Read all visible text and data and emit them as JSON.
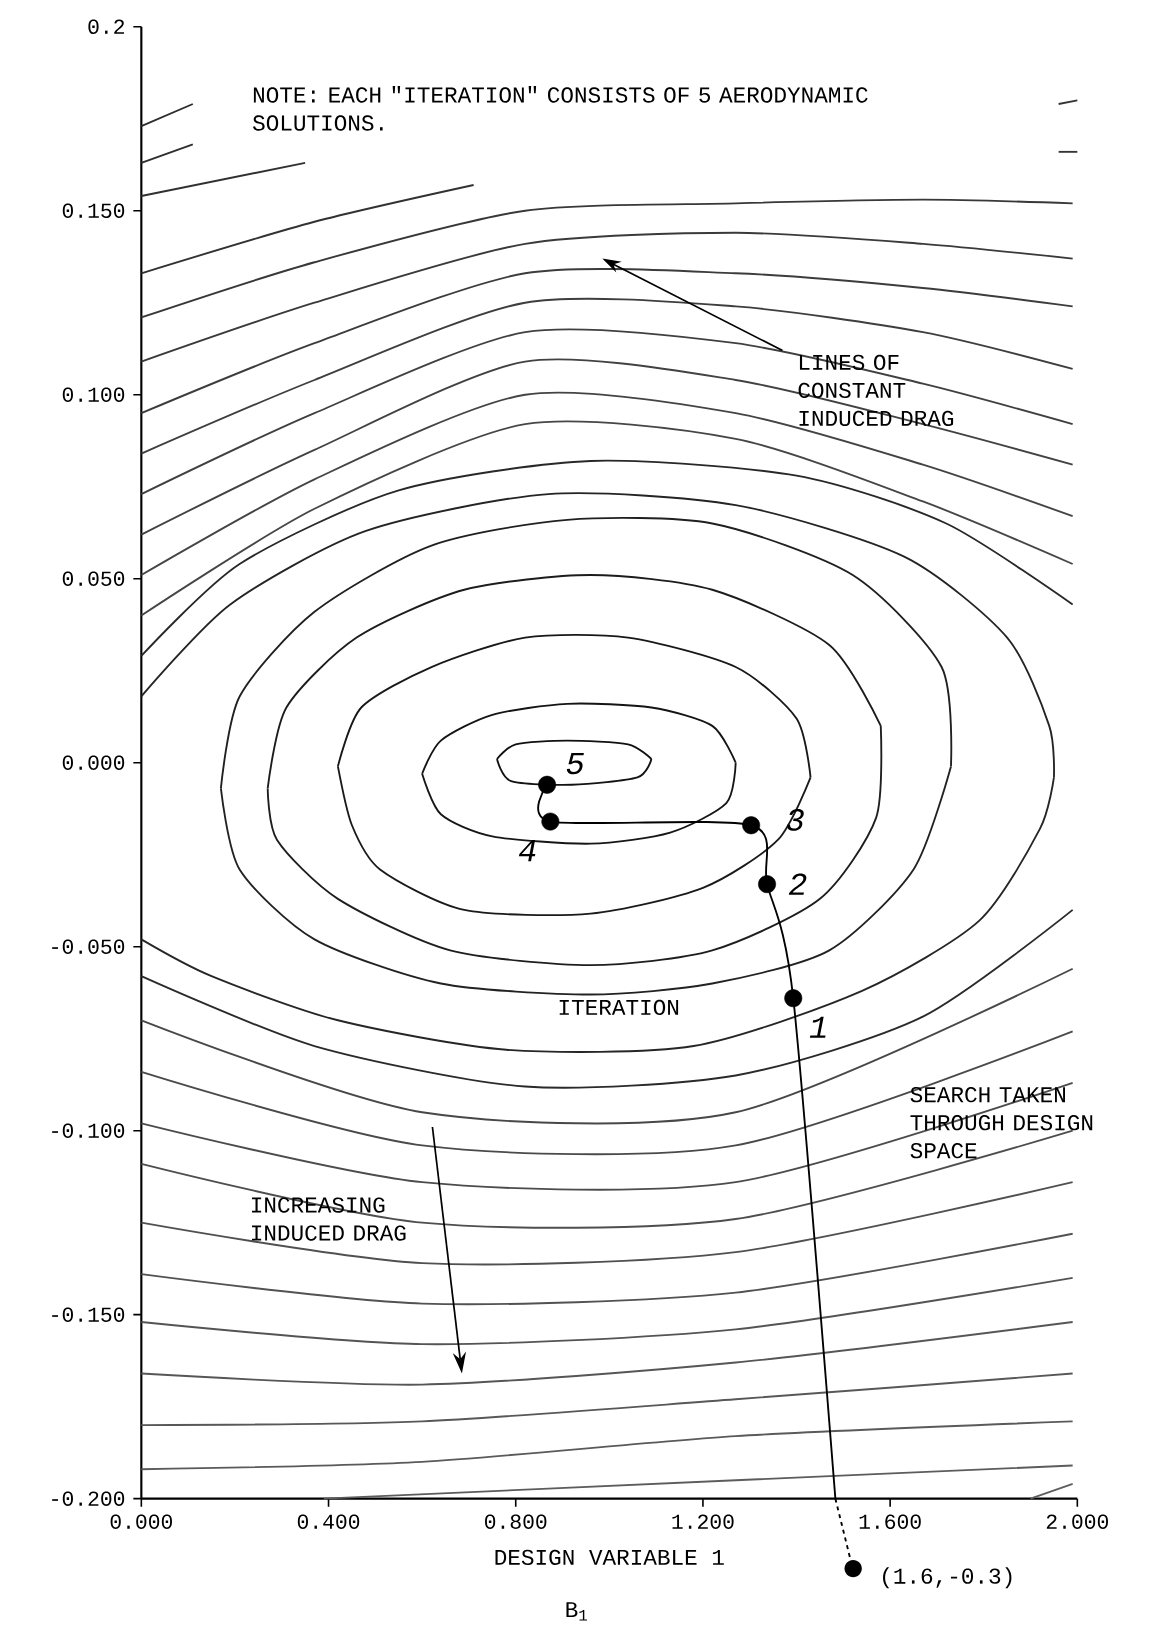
{
  "chart_data": {
    "type": "line",
    "xlabel": "DESIGN VARIABLE 1",
    "xlim": [
      0,
      2
    ],
    "ylim": [
      -0.2,
      0.2
    ],
    "xticks": [
      {
        "value": 0,
        "label": "0.000"
      },
      {
        "value": 0.4,
        "label": "0.400"
      },
      {
        "value": 0.8,
        "label": "0.800"
      },
      {
        "value": 1.2,
        "label": "1.200"
      },
      {
        "value": 1.6,
        "label": "1.600"
      },
      {
        "value": 2,
        "label": "2.000"
      }
    ],
    "yticks": [
      {
        "value": -0.2,
        "label": "-0.200"
      },
      {
        "value": -0.15,
        "label": "-0.150"
      },
      {
        "value": -0.1,
        "label": "-0.100"
      },
      {
        "value": -0.05,
        "label": "-0.050"
      },
      {
        "value": 0,
        "label": "0.000"
      },
      {
        "value": 0.05,
        "label": "0.050"
      },
      {
        "value": 0.1,
        "label": "0.100"
      },
      {
        "value": 0.15,
        "label": "0.150"
      },
      {
        "value": 0.2,
        "label": "0.2"
      }
    ],
    "series": [
      {
        "color": "#101010",
        "x": [
          0.76,
          0.8,
          0.91,
          1.04,
          1.09
        ],
        "values": [
          0.001,
          0.005,
          0.006,
          0.005,
          0.001
        ]
      },
      {
        "color": "#121212",
        "x": [
          0.76,
          0.79,
          0.92,
          1.06,
          1.09
        ],
        "values": [
          0.001,
          -0.005,
          -0.006,
          -0.004,
          0.001
        ]
      },
      {
        "color": "#141414",
        "x": [
          0.6,
          0.64,
          0.75,
          0.91,
          1.09,
          1.22,
          1.27
        ],
        "values": [
          -0.003,
          0.006,
          0.013,
          0.016,
          0.015,
          0.01,
          0.0
        ]
      },
      {
        "color": "#161616",
        "x": [
          0.6,
          0.64,
          0.75,
          0.96,
          1.13,
          1.25,
          1.27
        ],
        "values": [
          -0.003,
          -0.014,
          -0.02,
          -0.022,
          -0.019,
          -0.011,
          0.0
        ]
      },
      {
        "color": "#181818",
        "x": [
          0.42,
          0.47,
          0.62,
          0.82,
          1.04,
          1.27,
          1.4,
          1.43
        ],
        "values": [
          -0.001,
          0.015,
          0.026,
          0.034,
          0.034,
          0.026,
          0.012,
          -0.004
        ]
      },
      {
        "color": "#1a1a1a",
        "x": [
          0.42,
          0.45,
          0.51,
          0.69,
          0.96,
          1.2,
          1.36,
          1.43
        ],
        "values": [
          -0.001,
          -0.017,
          -0.029,
          -0.04,
          -0.041,
          -0.034,
          -0.021,
          -0.004
        ]
      },
      {
        "color": "#1c1c1c",
        "x": [
          0.27,
          0.31,
          0.46,
          0.69,
          0.96,
          1.22,
          1.47,
          1.58
        ],
        "values": [
          -0.007,
          0.015,
          0.034,
          0.047,
          0.051,
          0.047,
          0.032,
          0.01
        ]
      },
      {
        "color": "#1e1e1e",
        "x": [
          0.27,
          0.29,
          0.42,
          0.66,
          0.96,
          1.22,
          1.45,
          1.57,
          1.58
        ],
        "values": [
          -0.007,
          -0.021,
          -0.037,
          -0.051,
          -0.055,
          -0.051,
          -0.037,
          -0.015,
          0.01
        ]
      },
      {
        "color": "#202020",
        "x": [
          0.17,
          0.21,
          0.37,
          0.62,
          0.91,
          1.22,
          1.52,
          1.71,
          1.73
        ],
        "values": [
          -0.007,
          0.018,
          0.041,
          0.059,
          0.066,
          0.065,
          0.051,
          0.026,
          -0.001
        ]
      },
      {
        "color": "#222222",
        "x": [
          0.17,
          0.21,
          0.37,
          0.64,
          0.96,
          1.22,
          1.47,
          1.65,
          1.73
        ],
        "values": [
          -0.007,
          -0.029,
          -0.048,
          -0.06,
          -0.063,
          -0.06,
          -0.051,
          -0.029,
          -0.001
        ]
      },
      {
        "color": "#242424",
        "x": [
          0,
          0.19,
          0.48,
          0.87,
          1.27,
          1.63,
          1.85,
          1.94,
          1.95
        ],
        "values": [
          0.018,
          0.043,
          0.063,
          0.073,
          0.07,
          0.056,
          0.034,
          0.01,
          -0.004
        ]
      },
      {
        "color": "#262626",
        "x": [
          0,
          0.15,
          0.42,
          0.78,
          1.18,
          1.54,
          1.79,
          1.92,
          1.95
        ],
        "values": [
          -0.048,
          -0.058,
          -0.07,
          -0.078,
          -0.077,
          -0.062,
          -0.043,
          -0.018,
          -0.004
        ]
      },
      {
        "color": "#282828",
        "x": [
          0,
          0.21,
          0.55,
          0.96,
          1.4,
          1.72,
          1.99
        ],
        "values": [
          0.029,
          0.054,
          0.074,
          0.082,
          0.078,
          0.065,
          0.043
        ]
      },
      {
        "color": "#2a2a2a",
        "x": [
          0,
          0.37,
          0.82,
          1.27,
          1.67,
          1.99
        ],
        "values": [
          -0.058,
          -0.077,
          -0.088,
          -0.085,
          -0.069,
          -0.04
        ]
      },
      {
        "color": "#2c2c2c",
        "x": [
          0,
          0.11
        ],
        "values": [
          0.173,
          0.179
        ]
      },
      {
        "color": "#2e2e2e",
        "x": [
          0,
          0.11
        ],
        "values": [
          0.163,
          0.168
        ]
      },
      {
        "color": "#303030",
        "x": [
          0,
          0.35
        ],
        "values": [
          0.154,
          0.163
        ]
      },
      {
        "color": "#323232",
        "x": [
          0,
          0.37,
          0.71
        ],
        "values": [
          0.133,
          0.147,
          0.157
        ]
      },
      {
        "color": "#343434",
        "x": [
          1.96,
          2.0
        ],
        "values": [
          0.179,
          0.18
        ]
      },
      {
        "color": "#363636",
        "x": [
          1.96,
          2.0
        ],
        "values": [
          0.166,
          0.166
        ]
      },
      {
        "color": "#383838",
        "x": [
          0,
          0.37,
          0.82,
          1.27,
          1.67,
          1.99
        ],
        "values": [
          0.121,
          0.136,
          0.15,
          0.152,
          0.153,
          0.152
        ]
      },
      {
        "color": "#3a3a3a",
        "x": [
          0,
          0.37,
          0.82,
          1.27,
          1.67,
          1.99
        ],
        "values": [
          0.109,
          0.125,
          0.141,
          0.144,
          0.141,
          0.137
        ]
      },
      {
        "color": "#3c3c3c",
        "x": [
          0,
          0.37,
          0.82,
          1.27,
          1.67,
          1.99
        ],
        "values": [
          0.095,
          0.114,
          0.133,
          0.133,
          0.129,
          0.124
        ]
      },
      {
        "color": "#3e3e3e",
        "x": [
          0,
          0.37,
          0.82,
          1.27,
          1.67,
          1.99
        ],
        "values": [
          0.084,
          0.104,
          0.125,
          0.124,
          0.117,
          0.107
        ]
      },
      {
        "color": "#404040",
        "x": [
          0,
          0.37,
          0.82,
          1.27,
          1.67,
          1.99
        ],
        "values": [
          0.073,
          0.095,
          0.117,
          0.114,
          0.103,
          0.092
        ]
      },
      {
        "color": "#424242",
        "x": [
          0,
          0.37,
          0.82,
          1.27,
          1.67,
          1.99
        ],
        "values": [
          0.062,
          0.085,
          0.109,
          0.104,
          0.092,
          0.081
        ]
      },
      {
        "color": "#444444",
        "x": [
          0,
          0.37,
          0.82,
          1.27,
          1.67,
          1.99
        ],
        "values": [
          0.051,
          0.077,
          0.1,
          0.095,
          0.081,
          0.067
        ]
      },
      {
        "color": "#464646",
        "x": [
          0,
          0.37,
          0.82,
          1.27,
          1.67,
          1.99
        ],
        "values": [
          0.04,
          0.069,
          0.092,
          0.088,
          0.071,
          0.054
        ]
      },
      {
        "color": "#484848",
        "x": [
          0,
          0.6,
          1.27,
          1.99
        ],
        "values": [
          -0.07,
          -0.095,
          -0.095,
          -0.056
        ]
      },
      {
        "color": "#4a4a4a",
        "x": [
          0,
          0.6,
          1.27,
          1.99
        ],
        "values": [
          -0.084,
          -0.104,
          -0.104,
          -0.073
        ]
      },
      {
        "color": "#4c4c4c",
        "x": [
          0,
          0.6,
          1.27,
          1.99
        ],
        "values": [
          -0.098,
          -0.114,
          -0.114,
          -0.087
        ]
      },
      {
        "color": "#4e4e4e",
        "x": [
          0,
          0.6,
          1.27,
          1.99
        ],
        "values": [
          -0.109,
          -0.125,
          -0.124,
          -0.1
        ]
      },
      {
        "color": "#505050",
        "x": [
          0,
          0.6,
          1.27,
          1.99
        ],
        "values": [
          -0.125,
          -0.136,
          -0.133,
          -0.114
        ]
      },
      {
        "color": "#525252",
        "x": [
          0,
          0.6,
          1.27,
          1.99
        ],
        "values": [
          -0.139,
          -0.147,
          -0.144,
          -0.128
        ]
      },
      {
        "color": "#545454",
        "x": [
          0,
          0.6,
          1.27,
          1.99
        ],
        "values": [
          -0.152,
          -0.158,
          -0.154,
          -0.14
        ]
      },
      {
        "color": "#565656",
        "x": [
          0,
          0.6,
          1.27,
          1.99
        ],
        "values": [
          -0.166,
          -0.169,
          -0.163,
          -0.152
        ]
      },
      {
        "color": "#585858",
        "x": [
          0,
          0.6,
          1.27,
          1.99
        ],
        "values": [
          -0.18,
          -0.179,
          -0.173,
          -0.166
        ]
      },
      {
        "color": "#5a5a5a",
        "x": [
          0,
          0.6,
          1.27,
          1.99
        ],
        "values": [
          -0.192,
          -0.19,
          -0.183,
          -0.179
        ]
      },
      {
        "color": "#5c5c5c",
        "x": [
          0.39,
          1.27,
          1.99
        ],
        "values": [
          -0.2,
          -0.195,
          -0.191
        ]
      },
      {
        "color": "#5e5e5e",
        "x": [
          1.9,
          1.99
        ],
        "values": [
          -0.2,
          -0.196
        ]
      },
      {
        "color": "#000000",
        "x": [
          1.483,
          1.393,
          1.337,
          1.303,
          0.874,
          0.867
        ],
        "values": [
          -0.2,
          -0.064,
          -0.033,
          -0.017,
          -0.016,
          -0.006
        ]
      },
      {
        "type": "scatter",
        "color": "#000000",
        "marker": "circle",
        "x": [
          1.393,
          1.337,
          1.303,
          0.874,
          0.867
        ],
        "values": [
          -0.064,
          -0.033,
          -0.017,
          -0.016,
          -0.006
        ]
      }
    ],
    "annotations": [
      "NOTE:  EACH \"ITERATION\" CONSISTS OF 5 AERODYNAMIC SOLUTIONS.",
      "LINES OF CONSTANT INDUCED DRAG",
      "ITERATION",
      "SEARCH TAKEN THROUGH DESIGN SPACE",
      "INCREASING INDUCED DRAG",
      "(1.6,-0.3)",
      "B$_{1}$",
      {
        "text": "1",
        "x": 1.393,
        "y": -0.064
      },
      {
        "text": "2",
        "x": 1.337,
        "y": -0.033
      },
      {
        "text": "3",
        "x": 1.303,
        "y": -0.017
      },
      {
        "text": "4",
        "x": 0.874,
        "y": -0.016
      },
      {
        "text": "5",
        "x": 0.867,
        "y": -0.006
      }
    ]
  }
}
